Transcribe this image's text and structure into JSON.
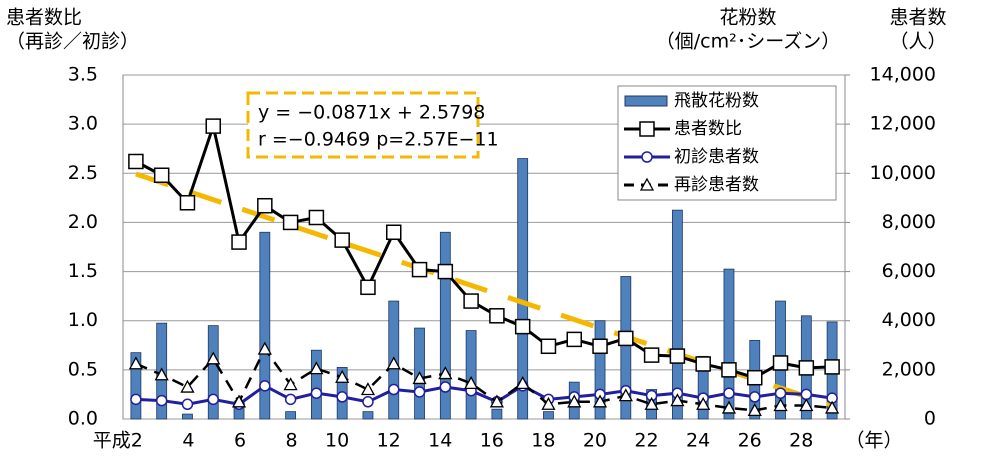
{
  "chart_data": {
    "type": "combo",
    "y_label_lines": [
      "患者数比",
      "（再診／初診）"
    ],
    "y2_label_groups": [
      [
        "花粉数",
        "（個/cm²･シーズン）"
      ],
      [
        "患者数",
        "（人）"
      ]
    ],
    "x_label": "（年）",
    "categories": [
      "平成2",
      null,
      "4",
      null,
      "6",
      null,
      "8",
      null,
      "10",
      null,
      "12",
      null,
      "14",
      null,
      "16",
      null,
      "18",
      null,
      "20",
      null,
      "22",
      null,
      "24",
      null,
      "26",
      null,
      "28",
      null
    ],
    "series": [
      {
        "name": "飛散花粉数",
        "type": "bar",
        "axis": "y2",
        "color": "#4f81bd",
        "values": [
          2700,
          3900,
          200,
          3800,
          500,
          7600,
          300,
          2800,
          2100,
          300,
          4800,
          3700,
          7600,
          3600,
          400,
          10600,
          300,
          1500,
          4000,
          5800,
          1200,
          8500,
          2550,
          6100,
          3200,
          4800,
          4200,
          3950
        ]
      },
      {
        "name": "患者数比",
        "type": "line",
        "axis": "y",
        "color": "#000000",
        "marker": "square",
        "dash": false,
        "values": [
          2.62,
          2.48,
          2.2,
          2.98,
          1.8,
          2.17,
          2.0,
          2.05,
          1.82,
          1.34,
          1.9,
          1.52,
          1.5,
          1.2,
          1.05,
          0.94,
          0.74,
          0.81,
          0.74,
          0.82,
          0.65,
          0.64,
          0.56,
          0.5,
          0.42,
          0.57,
          0.52,
          0.53
        ]
      },
      {
        "name": "初診患者数",
        "type": "line",
        "axis": "y2",
        "color": "#1f1f9f",
        "marker": "circle",
        "dash": false,
        "values": [
          800,
          750,
          600,
          800,
          600,
          1350,
          800,
          1050,
          900,
          700,
          1200,
          1100,
          1300,
          1150,
          700,
          1350,
          800,
          900,
          1000,
          1150,
          950,
          1050,
          850,
          1050,
          900,
          1050,
          1000,
          850
        ]
      },
      {
        "name": "再診患者数",
        "type": "line",
        "axis": "y2",
        "color": "#000000",
        "marker": "triangle",
        "dash": true,
        "values": [
          2250,
          1800,
          1300,
          2450,
          700,
          2850,
          1400,
          2050,
          1700,
          1200,
          2250,
          1650,
          1850,
          1450,
          700,
          1450,
          600,
          700,
          700,
          950,
          600,
          750,
          600,
          450,
          350,
          550,
          550,
          450
        ]
      }
    ],
    "trendline": {
      "slope": -0.0871,
      "intercept": 2.5798,
      "color": "#f5b800"
    },
    "annotation": [
      "y = −0.0871x + 2.5798",
      "r =−0.9469 p=2.57E−11"
    ],
    "ylim": [
      0,
      3.5
    ],
    "yticks": [
      {
        "value": 0,
        "label": "0.0"
      },
      0.5,
      {
        "value": 1,
        "label": "1.0"
      },
      1.5,
      {
        "value": 2,
        "label": "2.0"
      },
      2.5,
      {
        "value": 3,
        "label": "3.0"
      },
      3.5
    ],
    "y2lim": [
      0,
      14000
    ],
    "y2ticks": [
      0,
      {
        "value": 2000,
        "label": "2,000"
      },
      {
        "value": 4000,
        "label": "4,000"
      },
      {
        "value": 6000,
        "label": "6,000"
      },
      {
        "value": 8000,
        "label": "8,000"
      },
      {
        "value": 10000,
        "label": "10,000"
      },
      {
        "value": 12000,
        "label": "12,000"
      },
      {
        "value": 14000,
        "label": "14,000"
      }
    ],
    "grid": true
  }
}
